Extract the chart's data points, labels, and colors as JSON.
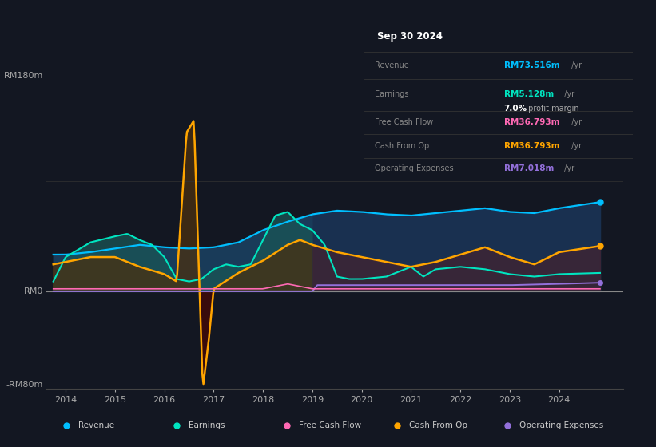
{
  "bg_color": "#131722",
  "ylabel_top": "RM180m",
  "ylabel_zero": "RM0",
  "ylabel_bottom": "-RM80m",
  "ylim": [
    -80,
    180
  ],
  "colors": {
    "revenue": "#00bfff",
    "earnings": "#00e5c0",
    "free_cash_flow": "#ff69b4",
    "cash_from_op": "#ffa500",
    "operating_expenses": "#9370db"
  },
  "info_box": {
    "date": "Sep 30 2024",
    "revenue_label": "Revenue",
    "revenue_value": "RM73.516m",
    "revenue_unit": " /yr",
    "earnings_label": "Earnings",
    "earnings_value": "RM5.128m",
    "earnings_unit": " /yr",
    "margin_value": "7.0%",
    "margin_text": " profit margin",
    "fcf_label": "Free Cash Flow",
    "fcf_value": "RM36.793m",
    "fcf_unit": " /yr",
    "cashop_label": "Cash From Op",
    "cashop_value": "RM36.793m",
    "cashop_unit": " /yr",
    "opex_label": "Operating Expenses",
    "opex_value": "RM7.018m",
    "opex_unit": " /yr"
  },
  "legend": [
    {
      "label": "Revenue",
      "color": "#00bfff"
    },
    {
      "label": "Earnings",
      "color": "#00e5c0"
    },
    {
      "label": "Free Cash Flow",
      "color": "#ff69b4"
    },
    {
      "label": "Cash From Op",
      "color": "#ffa500"
    },
    {
      "label": "Operating Expenses",
      "color": "#9370db"
    }
  ],
  "xtick_positions": [
    2014,
    2015,
    2016,
    2017,
    2018,
    2019,
    2020,
    2021,
    2022,
    2023,
    2024
  ]
}
